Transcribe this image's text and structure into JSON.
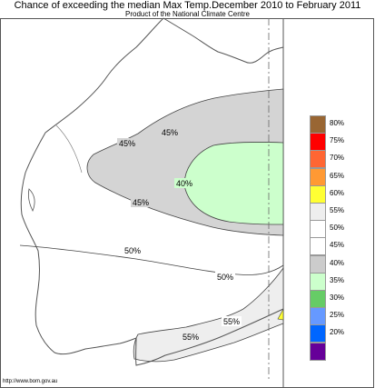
{
  "header": {
    "title": "Chance of exceeding the median Max Temp.December 2010 to February 2011",
    "subtitle": "Product of the National Climate Centre"
  },
  "footer": {
    "url": "http://www.bom.gov.au"
  },
  "colors": {
    "coast": "#555555",
    "contour": "#444444",
    "band_45_50": "#d4d4d4",
    "band_40_45": "#ccffcc",
    "band_55_60": "#eeeeee",
    "band_60_65": "#ffff33"
  },
  "contours": [
    {
      "id": "c45_top",
      "label": "45%"
    },
    {
      "id": "c45_left",
      "label": "45%"
    },
    {
      "id": "c40",
      "label": "40%"
    },
    {
      "id": "c45_bottom",
      "label": "45%"
    },
    {
      "id": "c50_left",
      "label": "50%"
    },
    {
      "id": "c50_mid",
      "label": "50%"
    },
    {
      "id": "c55_right",
      "label": "55%"
    },
    {
      "id": "c55_left",
      "label": "55%"
    }
  ],
  "legend": [
    {
      "label": "80%",
      "color": "#996633"
    },
    {
      "label": "75%",
      "color": "#ff0000"
    },
    {
      "label": "70%",
      "color": "#ff6633"
    },
    {
      "label": "65%",
      "color": "#ff9933"
    },
    {
      "label": "60%",
      "color": "#ffff33"
    },
    {
      "label": "55%",
      "color": "#eeeeee"
    },
    {
      "label": "50%",
      "color": "#ffffff"
    },
    {
      "label": "45%",
      "color": "#ffffff"
    },
    {
      "label": "40%",
      "color": "#cccccc"
    },
    {
      "label": "35%",
      "color": "#ccffcc"
    },
    {
      "label": "30%",
      "color": "#66cc66"
    },
    {
      "label": "25%",
      "color": "#6699ff"
    },
    {
      "label": "20%",
      "color": "#0066ff"
    },
    {
      "label": "",
      "color": "#660099"
    }
  ]
}
